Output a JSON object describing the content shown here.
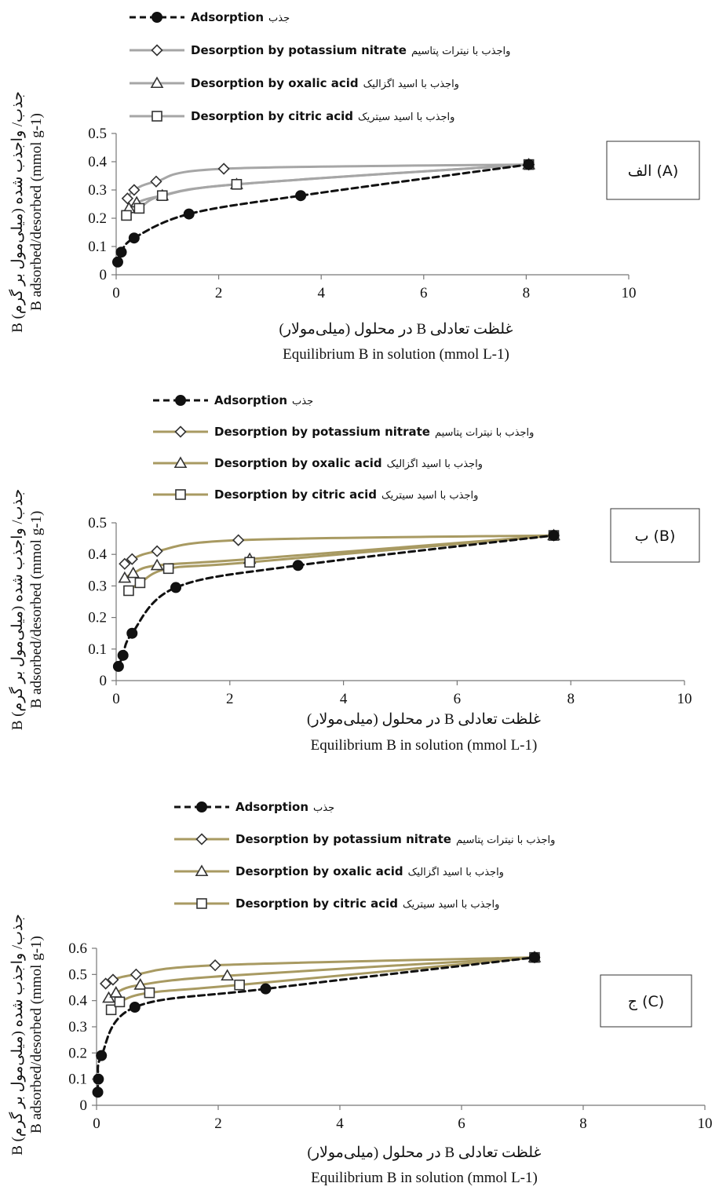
{
  "chart_data": [
    {
      "type": "scatter",
      "panel_label": "الف (A)",
      "xlabel_fa": "غلظت تعادلی B در محلول (میلی‌مولار)",
      "xlabel": "Equilibrium B in solution (mmol L-1)",
      "ylabel_fa": "جذب/ واجذب شده (میلی‌مول بر گرم) B",
      "ylabel": "B adsorbed/desorbed (mmol g-1)",
      "xlim": [
        0,
        10
      ],
      "ylim": [
        0,
        0.5
      ],
      "xticks": [
        "0",
        "2",
        "4",
        "6",
        "8",
        "10"
      ],
      "yticks": [
        "0",
        "0.1",
        "0.2",
        "0.3",
        "0.4",
        "0.5"
      ],
      "colors": {
        "adsorption": "#111111",
        "desorption": "#a6a6a6"
      },
      "series": [
        {
          "name": "Adsorption",
          "name_fa": "جذب",
          "marker": "circle",
          "x": [
            0.03,
            0.1,
            0.35,
            1.42,
            3.6,
            8.05
          ],
          "y": [
            0.045,
            0.08,
            0.13,
            0.215,
            0.28,
            0.39
          ]
        },
        {
          "name": "Desorption by potassium nitrate",
          "name_fa": "واجذب با نیترات پتاسیم",
          "marker": "diamond",
          "x": [
            0.22,
            0.35,
            0.78,
            2.1,
            8.05
          ],
          "y": [
            0.27,
            0.3,
            0.33,
            0.375,
            0.39
          ]
        },
        {
          "name": "Desorption by oxalic acid",
          "name_fa": "واجذب با اسید اگزالیک",
          "marker": "triangle",
          "x": [
            0.25,
            0.4,
            0.9,
            2.35,
            8.05
          ],
          "y": [
            0.235,
            0.255,
            0.28,
            0.32,
            0.39
          ]
        },
        {
          "name": "Desorption by citric acid",
          "name_fa": "واجذب با اسید سیتریک",
          "marker": "square",
          "x": [
            0.2,
            0.45,
            0.9,
            2.35,
            8.05
          ],
          "y": [
            0.21,
            0.235,
            0.28,
            0.32,
            0.39
          ]
        }
      ]
    },
    {
      "type": "scatter",
      "panel_label": "ب (B)",
      "xlabel_fa": "غلظت تعادلی B در محلول (میلی‌مولار)",
      "xlabel": "Equilibrium B in solution (mmol L-1)",
      "ylabel_fa": "جذب/ واجذب شده (میلی‌مول بر گرم) B",
      "ylabel": "B adsorbed/desorbed (mmol g-1)",
      "xlim": [
        0,
        10
      ],
      "ylim": [
        0,
        0.5
      ],
      "xticks": [
        "0",
        "2",
        "4",
        "6",
        "8",
        "10"
      ],
      "yticks": [
        "0",
        "0.1",
        "0.2",
        "0.3",
        "0.4",
        "0.5"
      ],
      "colors": {
        "adsorption": "#111111",
        "desorption": "#a89a62"
      },
      "series": [
        {
          "name": "Adsorption",
          "name_fa": "جذب",
          "marker": "circle",
          "x": [
            0.04,
            0.12,
            0.28,
            1.05,
            3.2,
            7.7
          ],
          "y": [
            0.045,
            0.08,
            0.15,
            0.295,
            0.365,
            0.46
          ]
        },
        {
          "name": "Desorption by potassium nitrate",
          "name_fa": "واجذب با نیترات پتاسیم",
          "marker": "diamond",
          "x": [
            0.15,
            0.28,
            0.72,
            2.15,
            7.7
          ],
          "y": [
            0.37,
            0.385,
            0.41,
            0.445,
            0.46
          ]
        },
        {
          "name": "Desorption by oxalic acid",
          "name_fa": "واجذب با اسید اگزالیک",
          "marker": "triangle",
          "x": [
            0.15,
            0.3,
            0.72,
            2.35,
            7.7
          ],
          "y": [
            0.325,
            0.34,
            0.365,
            0.385,
            0.46
          ]
        },
        {
          "name": "Desorption by citric acid",
          "name_fa": "واجذب با اسید سیتریک",
          "marker": "square",
          "x": [
            0.22,
            0.42,
            0.92,
            2.35,
            7.7
          ],
          "y": [
            0.285,
            0.31,
            0.355,
            0.375,
            0.46
          ]
        }
      ]
    },
    {
      "type": "scatter",
      "panel_label": "ج (C)",
      "xlabel_fa": "غلظت تعادلی B در محلول (میلی‌مولار)",
      "xlabel": "Equilibrium B in solution (mmol L-1)",
      "ylabel_fa": "جذب/ واجذب شده (میلی‌مول بر گرم) B",
      "ylabel": "B adsorbed/desorbed (mmol g-1)",
      "xlim": [
        0,
        10
      ],
      "ylim": [
        0,
        0.6
      ],
      "xticks": [
        "0",
        "2",
        "4",
        "6",
        "8",
        "10"
      ],
      "yticks": [
        "0",
        "0.1",
        "0.2",
        "0.3",
        "0.4",
        "0.5",
        "0.6"
      ],
      "colors": {
        "adsorption": "#111111",
        "desorption": "#a89a62"
      },
      "series": [
        {
          "name": "Adsorption",
          "name_fa": "جذب",
          "marker": "circle",
          "x": [
            0.02,
            0.03,
            0.08,
            0.63,
            2.78,
            7.2
          ],
          "y": [
            0.05,
            0.1,
            0.19,
            0.375,
            0.445,
            0.565
          ]
        },
        {
          "name": "Desorption by potassium nitrate",
          "name_fa": "واجذب با نیترات پتاسیم",
          "marker": "diamond",
          "x": [
            0.15,
            0.27,
            0.65,
            1.95,
            7.2
          ],
          "y": [
            0.465,
            0.48,
            0.5,
            0.535,
            0.565
          ]
        },
        {
          "name": "Desorption by oxalic acid",
          "name_fa": "واجذب با اسید اگزالیک",
          "marker": "triangle",
          "x": [
            0.2,
            0.32,
            0.72,
            2.15,
            7.2
          ],
          "y": [
            0.41,
            0.43,
            0.46,
            0.495,
            0.565
          ]
        },
        {
          "name": "Desorption by citric acid",
          "name_fa": "واجذب با اسید سیتریک",
          "marker": "square",
          "x": [
            0.24,
            0.38,
            0.87,
            2.35,
            7.2
          ],
          "y": [
            0.365,
            0.395,
            0.43,
            0.46,
            0.565
          ]
        }
      ]
    }
  ]
}
